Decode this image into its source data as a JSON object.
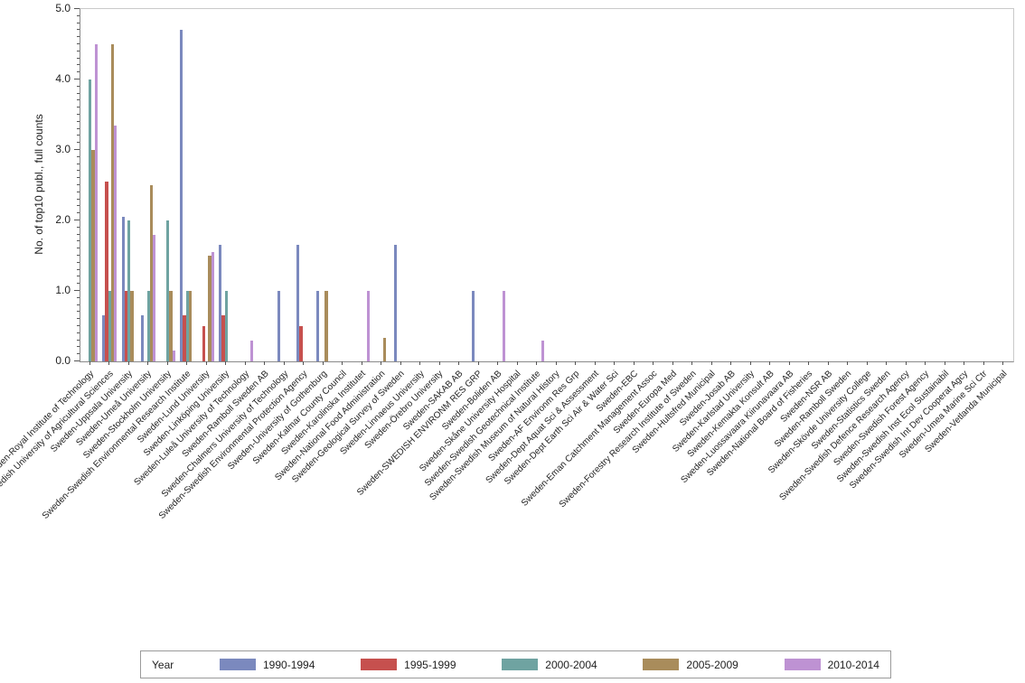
{
  "chart_data": {
    "type": "bar",
    "title": "",
    "xlabel": "",
    "ylabel": "No. of top10 publ., full counts",
    "ylim": [
      0,
      5
    ],
    "ytick_step": 1.0,
    "yminor_step": 0.1,
    "ytick_labels": [
      "0.0",
      "1.0",
      "2.0",
      "3.0",
      "4.0",
      "5.0"
    ],
    "grid": false,
    "legend_position": "bottom",
    "legend_title": "Year",
    "categories": [
      "Sweden-Royal Institute of Technology",
      "Sweden-Swedish University of Agricultural Sciences",
      "Sweden-Uppsala University",
      "Sweden-Umeå University",
      "Sweden-Stockholm University",
      "Sweden-Swedish Environmental Research Institute",
      "Sweden-Lund University",
      "Sweden-Linköping University",
      "Sweden-Luleå University of Technology",
      "Sweden-Ramboll Sweden AB",
      "Sweden-Chalmers University of Technology",
      "Sweden-Swedish Environmental Protection Agency",
      "Sweden-University of Gothenburg",
      "Sweden-Kalmar County Council",
      "Sweden-Karolinska Institutet",
      "Sweden-National Food Administration",
      "Sweden-Geological Survey of Sweden",
      "Sweden-Linnaeus University",
      "Sweden-Örebro University",
      "Sweden-SAKAB AB",
      "Sweden-SWEDISH ENVIRONM RES GRP",
      "Sweden-Boliden AB",
      "Sweden-Skåne University Hospital",
      "Sweden-Swedish Geotechnical Institute",
      "Sweden-Swedish Museum of Natural History",
      "Sweden-AF Environm Res Grp",
      "Sweden-Dept Aquat Sci & Assessment",
      "Sweden-Dept Earth Sci Air & Water Sci",
      "Sweden-EBC",
      "Sweden-Eman Catchment Management Assoc",
      "Sweden-Europa Med",
      "Sweden-Forestry Research Institute of Sweden",
      "Sweden-Hultsfred Municipal",
      "Sweden-Josab AB",
      "Sweden-Karlstad University",
      "Sweden-Kemakta Konsult AB",
      "Sweden-Luossavaara Kiirunavaara AB",
      "Sweden-National Board of Fisheries",
      "Sweden-NSR AB",
      "Sweden-Ramboll Sweden",
      "Sweden-Skövde University College",
      "Sweden-Statistics Sweden",
      "Sweden-Swedish Defence Research Agency",
      "Sweden-Swedish Forest Agency",
      "Sweden-Swedish Inst Ecol Sustainabil",
      "Sweden-Swedish Int Dev Cooperat Agcy",
      "Sweden-Umea Marine Sci Ctr",
      "Sweden-Vetlanda Municipal"
    ],
    "series": [
      {
        "name": "1990-1994",
        "color": "#7B89BE",
        "values": [
          0,
          0.65,
          2.05,
          0.65,
          0,
          4.7,
          0,
          1.65,
          0,
          0,
          1.0,
          1.65,
          1.0,
          0,
          0,
          0,
          1.65,
          0,
          0,
          0,
          1.0,
          0,
          0,
          0,
          0,
          0,
          0,
          0,
          0,
          0,
          0,
          0,
          0,
          0,
          0,
          0,
          0,
          0,
          0,
          0,
          0,
          0,
          0,
          0,
          0,
          0,
          0,
          0
        ]
      },
      {
        "name": "1995-1999",
        "color": "#C6504E",
        "values": [
          0,
          2.55,
          1.0,
          0,
          0,
          0.65,
          0.5,
          0.65,
          0,
          0,
          0,
          0.5,
          0,
          0,
          0,
          0,
          0,
          0,
          0,
          0,
          0,
          0,
          0,
          0,
          0,
          0,
          0,
          0,
          0,
          0,
          0,
          0,
          0,
          0,
          0,
          0,
          0,
          0,
          0,
          0,
          0,
          0,
          0,
          0,
          0,
          0,
          0,
          0
        ]
      },
      {
        "name": "2000-2004",
        "color": "#6FA3A1",
        "values": [
          4.0,
          1.0,
          2.0,
          1.0,
          2.0,
          1.0,
          0,
          1.0,
          0,
          0,
          0,
          0,
          0,
          0,
          0,
          0,
          0,
          0,
          0,
          0,
          0,
          0,
          0,
          0,
          0,
          0,
          0,
          0,
          0,
          0,
          0,
          0,
          0,
          0,
          0,
          0,
          0,
          0,
          0,
          0,
          0,
          0,
          0,
          0,
          0,
          0,
          0,
          0
        ]
      },
      {
        "name": "2005-2009",
        "color": "#A98C5B",
        "values": [
          3.0,
          4.5,
          1.0,
          2.5,
          1.0,
          1.0,
          1.5,
          0,
          0,
          0,
          0,
          0,
          1.0,
          0,
          0,
          0.33,
          0,
          0,
          0,
          0,
          0,
          0,
          0,
          0,
          0,
          0,
          0,
          0,
          0,
          0,
          0,
          0,
          0,
          0,
          0,
          0,
          0,
          0,
          0,
          0,
          0,
          0,
          0,
          0,
          0,
          0,
          0,
          0
        ]
      },
      {
        "name": "2010-2014",
        "color": "#BE92D3",
        "values": [
          4.5,
          3.35,
          0,
          1.8,
          0.15,
          0,
          1.55,
          0,
          0.3,
          0,
          0,
          0,
          0,
          0,
          1.0,
          0,
          0,
          0,
          0,
          0,
          0,
          1.0,
          0,
          0.3,
          0,
          0,
          0,
          0,
          0,
          0,
          0,
          0,
          0,
          0,
          0,
          0,
          0,
          0,
          0,
          0,
          0,
          0,
          0,
          0,
          0,
          0,
          0,
          0
        ]
      }
    ]
  }
}
